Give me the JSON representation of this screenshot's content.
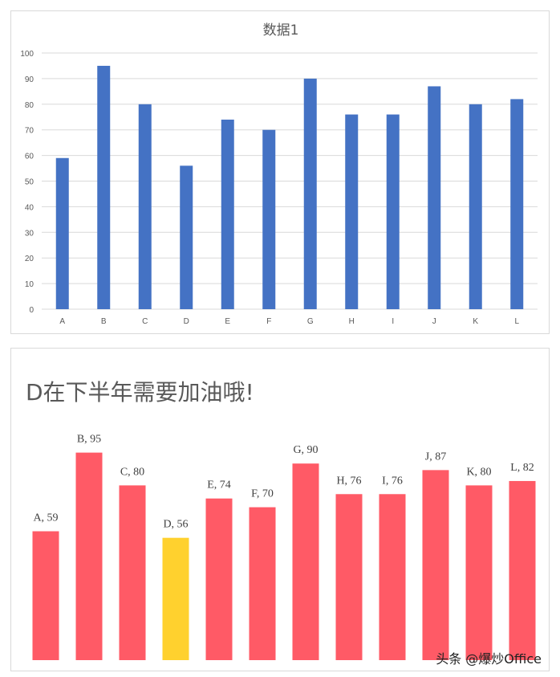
{
  "chart_data": [
    {
      "type": "bar",
      "title": "数据1",
      "categories": [
        "A",
        "B",
        "C",
        "D",
        "E",
        "F",
        "G",
        "H",
        "I",
        "J",
        "K",
        "L"
      ],
      "values": [
        59,
        95,
        80,
        56,
        74,
        70,
        90,
        76,
        76,
        87,
        80,
        82
      ],
      "ylim": [
        0,
        100
      ],
      "yticks": [
        0,
        10,
        20,
        30,
        40,
        50,
        60,
        70,
        80,
        90,
        100
      ],
      "grid": true,
      "bar_color": "#4472C4"
    },
    {
      "type": "bar",
      "title": "D在下半年需要加油哦!",
      "categories": [
        "A",
        "B",
        "C",
        "D",
        "E",
        "F",
        "G",
        "H",
        "I",
        "J",
        "K",
        "L"
      ],
      "values": [
        59,
        95,
        80,
        56,
        74,
        70,
        90,
        76,
        76,
        87,
        80,
        82
      ],
      "data_labels": [
        "A, 59",
        "B, 95",
        "C, 80",
        "D, 56",
        "E, 74",
        "F, 70",
        "G, 90",
        "H, 76",
        "I, 76",
        "J, 87",
        "K, 80",
        "L, 82"
      ],
      "grid": false,
      "bar_color": "#FF5A66",
      "highlight_category": "D",
      "highlight_color": "#FFD12E"
    }
  ],
  "watermark": "头条 @爆炒Office"
}
